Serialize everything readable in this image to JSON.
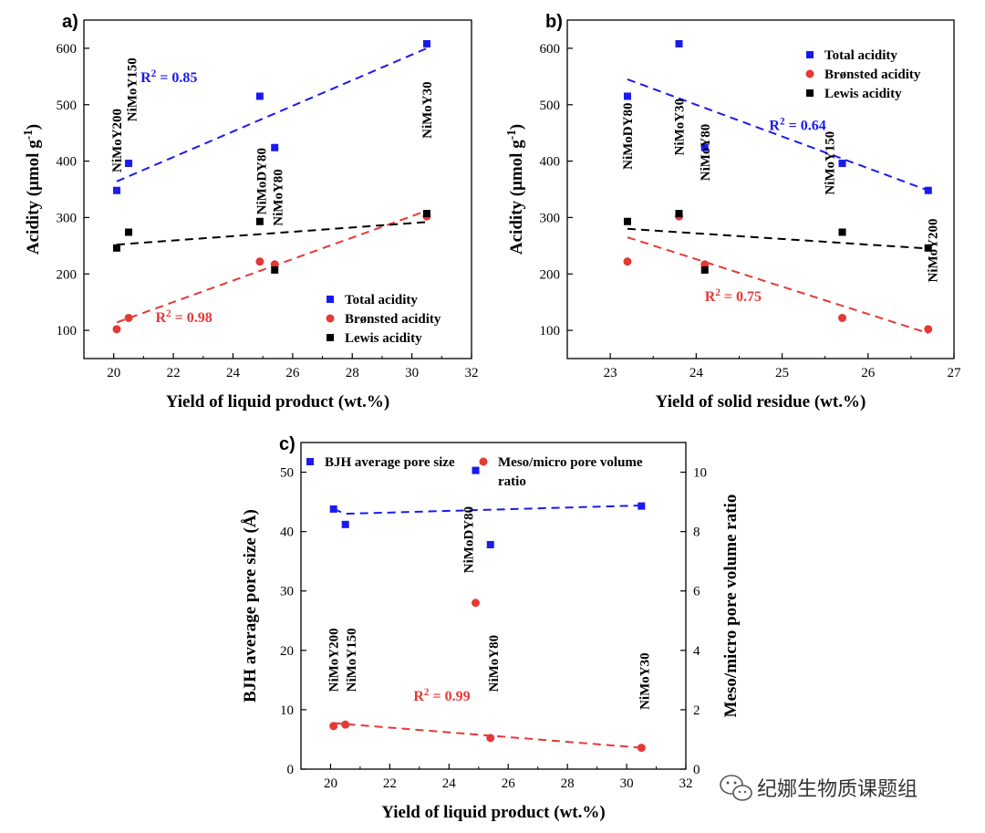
{
  "watermark": "纪娜生物质课题组",
  "colors": {
    "blue": "#1a1af0",
    "red": "#e53935",
    "black": "#000000"
  },
  "chart_data": [
    {
      "panel": "a)",
      "type": "scatter",
      "xlabel": "Yield of liquid product (wt.%)",
      "ylabel": "Acidity (μmol g⁻¹)",
      "xlim": [
        19,
        32
      ],
      "ylim": [
        50,
        650
      ],
      "xticks": [
        20,
        22,
        24,
        26,
        28,
        30,
        32
      ],
      "yticks": [
        100,
        200,
        300,
        400,
        500,
        600
      ],
      "series": [
        {
          "name": "Total acidity",
          "marker": "square",
          "color": "#1a1af0",
          "x": [
            20.1,
            20.5,
            24.9,
            25.4,
            30.5
          ],
          "y": [
            348,
            396,
            515,
            424,
            608
          ],
          "fit": [
            [
              20.1,
              364
            ],
            [
              30.5,
              600
            ]
          ]
        },
        {
          "name": "Brønsted acidity",
          "marker": "circle",
          "color": "#e53935",
          "x": [
            20.1,
            20.5,
            24.9,
            25.4,
            30.5
          ],
          "y": [
            102,
            122,
            222,
            217,
            302
          ],
          "fit": [
            [
              20.1,
              114
            ],
            [
              30.5,
              312
            ]
          ]
        },
        {
          "name": "Lewis acidity",
          "marker": "square",
          "color": "#000000",
          "x": [
            20.1,
            20.5,
            24.9,
            25.4,
            30.5
          ],
          "y": [
            246,
            274,
            293,
            207,
            307
          ],
          "fit": [
            [
              20.1,
              252
            ],
            [
              30.5,
              292
            ]
          ]
        }
      ],
      "annotations": [
        {
          "text": "R² = 0.85",
          "color": "#1a1af0",
          "x": 20.9,
          "y": 540
        },
        {
          "text": "R² = 0.98",
          "color": "#e53935",
          "x": 21.4,
          "y": 115
        }
      ],
      "sample_labels": [
        {
          "text": "NiMoY200",
          "x": 20.1,
          "y": 380
        },
        {
          "text": "NiMoY150",
          "x": 20.6,
          "y": 470
        },
        {
          "text": "NiMoDY80",
          "x": 24.95,
          "y": 305
        },
        {
          "text": "NiMoY80",
          "x": 25.5,
          "y": 285
        },
        {
          "text": "NiMoY30",
          "x": 30.5,
          "y": 440
        }
      ]
    },
    {
      "panel": "b)",
      "type": "scatter",
      "xlabel": "Yield of solid residue (wt.%)",
      "ylabel": "Acidity (μmol g⁻¹)",
      "xlim": [
        22.5,
        27
      ],
      "ylim": [
        50,
        650
      ],
      "xticks": [
        23,
        24,
        25,
        26,
        27
      ],
      "yticks": [
        100,
        200,
        300,
        400,
        500,
        600
      ],
      "series": [
        {
          "name": "Total acidity",
          "marker": "square",
          "color": "#1a1af0",
          "x": [
            23.2,
            23.8,
            24.1,
            25.7,
            26.7
          ],
          "y": [
            515,
            608,
            424,
            396,
            348
          ],
          "fit": [
            [
              23.2,
              545
            ],
            [
              26.7,
              348
            ]
          ]
        },
        {
          "name": "Brønsted acidity",
          "marker": "circle",
          "color": "#e53935",
          "x": [
            23.2,
            23.8,
            24.1,
            25.7,
            26.7
          ],
          "y": [
            222,
            302,
            217,
            122,
            102
          ],
          "fit": [
            [
              23.2,
              265
            ],
            [
              26.7,
              95
            ]
          ]
        },
        {
          "name": "Lewis acidity",
          "marker": "square",
          "color": "#000000",
          "x": [
            23.2,
            23.8,
            24.1,
            25.7,
            26.7
          ],
          "y": [
            293,
            307,
            207,
            274,
            246
          ],
          "fit": [
            [
              23.2,
              280
            ],
            [
              26.7,
              245
            ]
          ]
        }
      ],
      "annotations": [
        {
          "text": "R² = 0.64",
          "color": "#1a1af0",
          "x": 24.85,
          "y": 455
        },
        {
          "text": "R² = 0.75",
          "color": "#e53935",
          "x": 24.1,
          "y": 152
        }
      ],
      "sample_labels": [
        {
          "text": "NiMoDY80",
          "x": 23.2,
          "y": 385
        },
        {
          "text": "NiMoY30",
          "x": 23.8,
          "y": 410
        },
        {
          "text": "NiMoY80",
          "x": 24.1,
          "y": 365
        },
        {
          "text": "NiMoY150",
          "x": 25.55,
          "y": 340
        },
        {
          "text": "NiMoY200",
          "x": 26.75,
          "y": 185
        }
      ]
    },
    {
      "panel": "c)",
      "type": "scatter",
      "xlabel": "Yield of liquid product (wt.%)",
      "ylabel": "BJH average pore size (Å)",
      "ylabel_right": "Meso/micro pore volume ratio",
      "xlim": [
        19,
        32
      ],
      "ylim": [
        0,
        55
      ],
      "ylim_right": [
        0,
        11
      ],
      "xticks": [
        20,
        22,
        24,
        26,
        28,
        30,
        32
      ],
      "yticks": [
        0,
        10,
        20,
        30,
        40,
        50
      ],
      "yticks_right": [
        0,
        2,
        4,
        6,
        8,
        10
      ],
      "series": [
        {
          "name": "BJH average pore size",
          "axis": "left",
          "marker": "square",
          "color": "#1a1af0",
          "x": [
            20.1,
            20.5,
            24.9,
            25.4,
            30.5
          ],
          "y": [
            43.8,
            41.2,
            50.3,
            37.8,
            44.3
          ],
          "fit": [
            [
              20.1,
              43.8
            ],
            [
              20.5,
              43.0
            ],
            [
              30.5,
              44.4
            ]
          ]
        },
        {
          "name": "Meso/micro pore volume ratio",
          "axis": "right",
          "marker": "circle",
          "color": "#e53935",
          "x": [
            20.1,
            20.5,
            24.9,
            25.4,
            30.5
          ],
          "y": [
            1.45,
            1.5,
            5.6,
            1.05,
            0.72
          ],
          "fit": [
            [
              20.1,
              1.55
            ],
            [
              30.5,
              0.72
            ]
          ]
        }
      ],
      "annotations": [
        {
          "text": "R² = 0.99",
          "color": "#e53935",
          "x": 22.8,
          "y": 2.3
        }
      ],
      "sample_labels": [
        {
          "text": "NiMoDY80",
          "x": 24.65,
          "y": 33
        },
        {
          "text": "NiMoY200",
          "x": 20.1,
          "y": 13
        },
        {
          "text": "NiMoY150",
          "x": 20.7,
          "y": 13
        },
        {
          "text": "NiMoY80",
          "x": 25.5,
          "y": 13
        },
        {
          "text": "NiMoY30",
          "x": 30.6,
          "y": 10
        }
      ]
    }
  ]
}
